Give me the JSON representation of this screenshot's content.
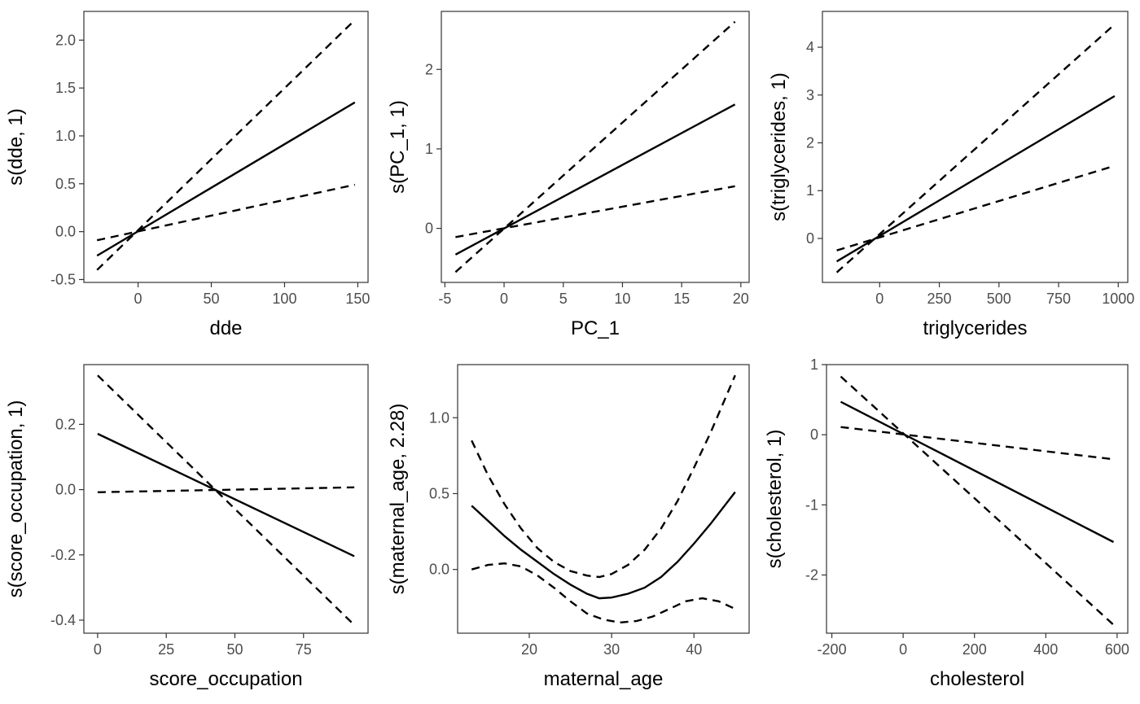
{
  "chart_data": [
    {
      "type": "line",
      "xlabel": "dde",
      "ylabel": "s(dde, 1)",
      "xlim": [
        -37,
        157
      ],
      "ylim": [
        -0.53,
        2.3
      ],
      "xticks": [
        0,
        50,
        100,
        150
      ],
      "xtick_labels": [
        "0",
        "50",
        "100",
        "150"
      ],
      "yticks": [
        -0.5,
        0,
        0.5,
        1.0,
        1.5,
        2.0
      ],
      "ytick_labels": [
        "-0.5",
        "0.0",
        "0.5",
        "1.0",
        "1.5",
        "2.0"
      ],
      "grid": false,
      "series": [
        {
          "style": "solid",
          "x": [
            -28,
            148
          ],
          "y": [
            -0.25,
            1.35
          ]
        },
        {
          "style": "dashed",
          "x": [
            -28,
            148
          ],
          "y": [
            -0.09,
            0.49
          ]
        },
        {
          "style": "dashed",
          "x": [
            -28,
            148
          ],
          "y": [
            -0.4,
            2.21
          ]
        }
      ]
    },
    {
      "type": "line",
      "xlabel": "PC_1",
      "ylabel": "s(PC_1, 1)",
      "xlim": [
        -5.3,
        20.7
      ],
      "ylim": [
        -0.68,
        2.73
      ],
      "xticks": [
        -5,
        0,
        5,
        10,
        15,
        20
      ],
      "xtick_labels": [
        "-5",
        "0",
        "5",
        "10",
        "15",
        "20"
      ],
      "yticks": [
        0,
        1,
        2
      ],
      "ytick_labels": [
        "0",
        "1",
        "2"
      ],
      "grid": false,
      "series": [
        {
          "style": "solid",
          "x": [
            -4.1,
            19.5
          ],
          "y": [
            -0.33,
            1.56
          ]
        },
        {
          "style": "dashed",
          "x": [
            -4.1,
            19.5
          ],
          "y": [
            -0.11,
            0.53
          ]
        },
        {
          "style": "dashed",
          "x": [
            -4.1,
            19.5
          ],
          "y": [
            -0.55,
            2.6
          ]
        }
      ]
    },
    {
      "type": "line",
      "xlabel": "triglycerides",
      "ylabel": "s(triglycerides, 1)",
      "xlim": [
        -240,
        1040
      ],
      "ylim": [
        -0.92,
        4.75
      ],
      "xticks": [
        0,
        250,
        500,
        750,
        1000
      ],
      "xtick_labels": [
        "0",
        "250",
        "500",
        "750",
        "1000"
      ],
      "yticks": [
        0,
        1,
        2,
        3,
        4
      ],
      "ytick_labels": [
        "0",
        "1",
        "2",
        "3",
        "4"
      ],
      "grid": false,
      "series": [
        {
          "style": "solid",
          "x": [
            -180,
            985
          ],
          "y": [
            -0.48,
            2.98
          ]
        },
        {
          "style": "dashed",
          "x": [
            -180,
            985
          ],
          "y": [
            -0.25,
            1.52
          ]
        },
        {
          "style": "dashed",
          "x": [
            -180,
            985
          ],
          "y": [
            -0.71,
            4.48
          ]
        }
      ]
    },
    {
      "type": "line",
      "xlabel": "score_occupation",
      "ylabel": "s(score_occupation, 1)",
      "xlim": [
        -5,
        98.5
      ],
      "ylim": [
        -0.44,
        0.383
      ],
      "xticks": [
        0,
        25,
        50,
        75
      ],
      "xtick_labels": [
        "0",
        "25",
        "50",
        "75"
      ],
      "yticks": [
        -0.4,
        -0.2,
        0,
        0.2
      ],
      "ytick_labels": [
        "-0.4",
        "-0.2",
        "0.0",
        "0.2"
      ],
      "grid": false,
      "series": [
        {
          "style": "solid",
          "x": [
            0,
            93.5
          ],
          "y": [
            0.171,
            -0.204
          ]
        },
        {
          "style": "dashed",
          "x": [
            0,
            93.5
          ],
          "y": [
            -0.008,
            0.007
          ]
        },
        {
          "style": "dashed",
          "x": [
            0,
            93.5
          ],
          "y": [
            0.35,
            -0.415
          ]
        }
      ]
    },
    {
      "type": "line",
      "xlabel": "maternal_age",
      "ylabel": "s(maternal_age, 2.28)",
      "xlim": [
        11.3,
        46.7
      ],
      "ylim": [
        -0.42,
        1.35
      ],
      "xticks": [
        20,
        30,
        40
      ],
      "xtick_labels": [
        "20",
        "30",
        "40"
      ],
      "yticks": [
        0,
        0.5,
        1.0
      ],
      "ytick_labels": [
        "0.0",
        "0.5",
        "1.0"
      ],
      "grid": false,
      "series": [
        {
          "style": "solid",
          "x": [
            13,
            15,
            17,
            19,
            21,
            23,
            25,
            27,
            28.5,
            30,
            32,
            34,
            36,
            38,
            40,
            42,
            45
          ],
          "y": [
            0.42,
            0.32,
            0.22,
            0.13,
            0.05,
            -0.03,
            -0.1,
            -0.16,
            -0.19,
            -0.185,
            -0.16,
            -0.12,
            -0.05,
            0.05,
            0.17,
            0.3,
            0.51
          ]
        },
        {
          "style": "dashed",
          "x": [
            13,
            15,
            17,
            19,
            21,
            23,
            25,
            27,
            29,
            31,
            33,
            35,
            37,
            39,
            41,
            43,
            45
          ],
          "y": [
            0.0,
            0.03,
            0.04,
            0.02,
            -0.04,
            -0.12,
            -0.21,
            -0.29,
            -0.33,
            -0.35,
            -0.34,
            -0.31,
            -0.26,
            -0.21,
            -0.19,
            -0.21,
            -0.26
          ]
        },
        {
          "style": "dashed",
          "x": [
            13,
            15,
            17,
            19,
            21,
            23,
            25,
            27,
            28.5,
            30,
            32,
            34,
            36,
            38,
            40,
            42,
            45
          ],
          "y": [
            0.85,
            0.62,
            0.43,
            0.27,
            0.14,
            0.05,
            -0.01,
            -0.04,
            -0.05,
            -0.03,
            0.03,
            0.13,
            0.27,
            0.45,
            0.67,
            0.9,
            1.28
          ]
        }
      ]
    },
    {
      "type": "line",
      "xlabel": "cholesterol",
      "ylabel": "s(cholesterol, 1)",
      "xlim": [
        -215,
        630
      ],
      "ylim": [
        -2.83,
        1.0
      ],
      "xticks": [
        -200,
        0,
        200,
        400,
        600
      ],
      "xtick_labels": [
        "-200",
        "0",
        "200",
        "400",
        "600"
      ],
      "yticks": [
        -2,
        -1,
        0,
        1
      ],
      "ytick_labels": [
        "-2",
        "-1",
        "0",
        "1"
      ],
      "grid": false,
      "series": [
        {
          "style": "solid",
          "x": [
            -175,
            590
          ],
          "y": [
            0.47,
            -1.53
          ]
        },
        {
          "style": "dashed",
          "x": [
            -175,
            590
          ],
          "y": [
            0.11,
            -0.35
          ]
        },
        {
          "style": "dashed",
          "x": [
            -175,
            590
          ],
          "y": [
            0.83,
            -2.71
          ]
        }
      ]
    }
  ]
}
